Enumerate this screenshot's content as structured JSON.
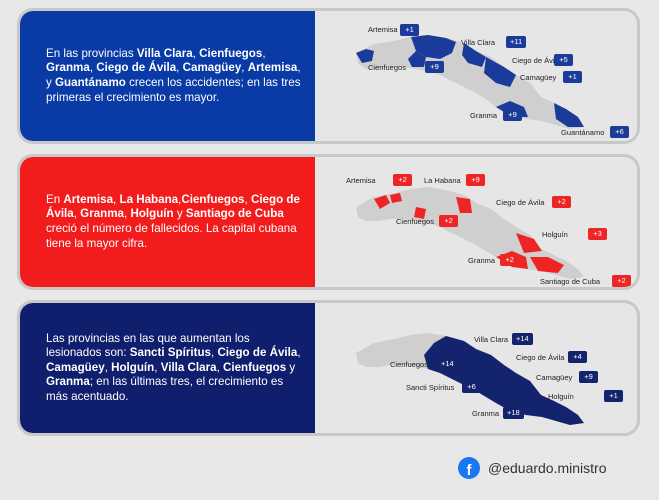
{
  "panel1": {
    "text_parts": [
      {
        "t": "En las provincias ",
        "b": false
      },
      {
        "t": "Villa Clara",
        "b": true
      },
      {
        "t": ", ",
        "b": false
      },
      {
        "t": "Cienfuegos",
        "b": true
      },
      {
        "t": ", ",
        "b": false
      },
      {
        "t": "Granma",
        "b": true
      },
      {
        "t": ", ",
        "b": false
      },
      {
        "t": "Ciego de Ávila",
        "b": true
      },
      {
        "t": ", ",
        "b": false
      },
      {
        "t": "Camagüey",
        "b": true
      },
      {
        "t": ", ",
        "b": false
      },
      {
        "t": "Artemisa",
        "b": true
      },
      {
        "t": ", y ",
        "b": false
      },
      {
        "t": "Guantánamo",
        "b": true
      },
      {
        "t": " crecen los accidentes; en las tres primeras el crecimiento es mayor.",
        "b": false
      }
    ],
    "labels": [
      {
        "name": "Artemisa",
        "value": "+1"
      },
      {
        "name": "Villa Clara",
        "value": "+11"
      },
      {
        "name": "Cienfuegos",
        "value": "+9"
      },
      {
        "name": "Ciego de Ávila",
        "value": "+5"
      },
      {
        "name": "Camagüey",
        "value": "+1"
      },
      {
        "name": "Granma",
        "value": "+9"
      },
      {
        "name": "Guantánamo",
        "value": "+6"
      }
    ]
  },
  "panel2": {
    "text_parts": [
      {
        "t": "En ",
        "b": false
      },
      {
        "t": "Artemisa",
        "b": true
      },
      {
        "t": ", ",
        "b": false
      },
      {
        "t": "La Habana",
        "b": true
      },
      {
        "t": ",",
        "b": false
      },
      {
        "t": "Cienfuegos",
        "b": true
      },
      {
        "t": ", ",
        "b": false
      },
      {
        "t": "Ciego de Ávila",
        "b": true
      },
      {
        "t": ", ",
        "b": false
      },
      {
        "t": "Granma",
        "b": true
      },
      {
        "t": ", ",
        "b": false
      },
      {
        "t": "Holguín",
        "b": true
      },
      {
        "t": " y ",
        "b": false
      },
      {
        "t": "Santiago de Cuba",
        "b": true
      },
      {
        "t": " creció el número de fallecidos. La capital cubana tiene la mayor cifra.",
        "b": false
      }
    ],
    "labels": [
      {
        "name": "Artemisa",
        "value": "+2"
      },
      {
        "name": "La Habana",
        "value": "+9"
      },
      {
        "name": "Ciego de Ávila",
        "value": "+2"
      },
      {
        "name": "Cienfuegos",
        "value": "+2"
      },
      {
        "name": "Holguín",
        "value": "+3"
      },
      {
        "name": "Granma",
        "value": "+2"
      },
      {
        "name": "Santiago de Cuba",
        "value": "+2"
      }
    ]
  },
  "panel3": {
    "text_parts": [
      {
        "t": "Las provincias en las que aumentan los lesionados son: ",
        "b": false
      },
      {
        "t": "Sancti Spíritus",
        "b": true
      },
      {
        "t": ", ",
        "b": false
      },
      {
        "t": "Ciego de Ávila",
        "b": true
      },
      {
        "t": ", ",
        "b": false
      },
      {
        "t": "Camagüey",
        "b": true
      },
      {
        "t": ", ",
        "b": false
      },
      {
        "t": "Holguín",
        "b": true
      },
      {
        "t": ", ",
        "b": false
      },
      {
        "t": "Villa Clara",
        "b": true
      },
      {
        "t": ", ",
        "b": false
      },
      {
        "t": "Cienfuegos",
        "b": true
      },
      {
        "t": " y ",
        "b": false
      },
      {
        "t": "Granma",
        "b": true
      },
      {
        "t": "; en las últimas tres, el crecimiento es más acentuado.",
        "b": false
      }
    ],
    "labels": [
      {
        "name": "Villa Clara",
        "value": "+14"
      },
      {
        "name": "Cienfuegos",
        "value": "+14"
      },
      {
        "name": "Ciego de Ávila",
        "value": "+4"
      },
      {
        "name": "Camagüey",
        "value": "+9"
      },
      {
        "name": "Sancti Spíritus",
        "value": "+6"
      },
      {
        "name": "Holguín",
        "value": "+1"
      },
      {
        "name": "Granma",
        "value": "+18"
      }
    ]
  },
  "footer": {
    "handle": "@eduardo.ministro",
    "icon": "facebook-icon"
  },
  "colors": {
    "blue": "#0a3aa6",
    "red": "#f21c1c",
    "navy": "#101e6e",
    "map_gray": "#cfcfcf"
  }
}
